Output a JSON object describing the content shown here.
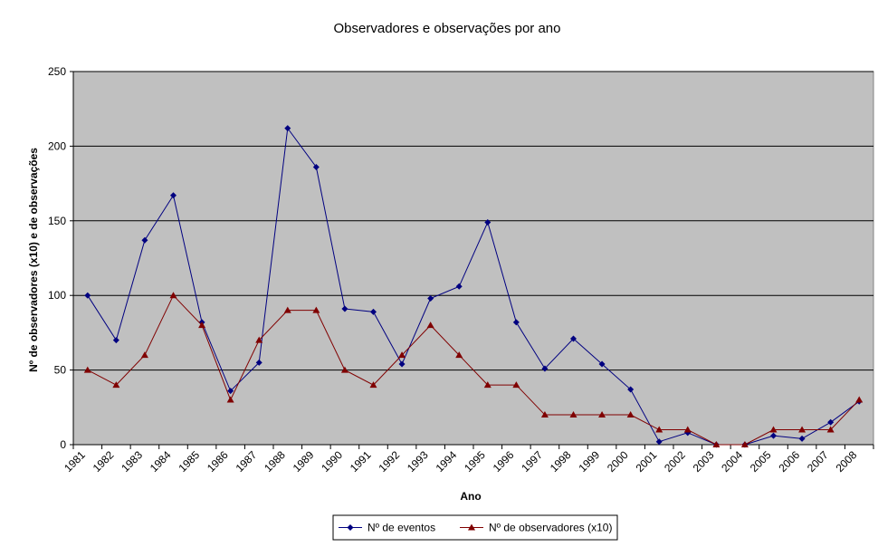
{
  "chart_data": {
    "type": "line",
    "title": "Observadores e observações por ano",
    "xlabel": "Ano",
    "ylabel": "Nº de observadores (x10) e de observações",
    "ylim": [
      0,
      250
    ],
    "yticks": [
      "0",
      "50",
      "100",
      "150",
      "200",
      "250"
    ],
    "grid": "horizontal",
    "legend_position": "bottom",
    "categories": [
      "1981",
      "1982",
      "1983",
      "1984",
      "1985",
      "1986",
      "1987",
      "1988",
      "1989",
      "1990",
      "1991",
      "1992",
      "1993",
      "1994",
      "1995",
      "1996",
      "1997",
      "1998",
      "1999",
      "2000",
      "2001",
      "2002",
      "2003",
      "2004",
      "2005",
      "2006",
      "2007",
      "2008"
    ],
    "series": [
      {
        "name": "Nº de eventos",
        "color": "#000080",
        "marker": "diamond",
        "values": [
          100,
          70,
          137,
          167,
          82,
          36,
          55,
          212,
          186,
          91,
          89,
          54,
          98,
          106,
          149,
          82,
          51,
          71,
          54,
          37,
          2,
          8,
          0,
          0,
          6,
          4,
          15,
          29
        ]
      },
      {
        "name": "Nº de observadores (x10)",
        "color": "#800000",
        "marker": "triangle",
        "values": [
          50,
          40,
          60,
          100,
          80,
          30,
          70,
          90,
          90,
          50,
          40,
          60,
          80,
          60,
          40,
          40,
          20,
          20,
          20,
          20,
          10,
          10,
          0,
          0,
          10,
          10,
          10,
          30
        ]
      }
    ],
    "colors": {
      "plot_background": "#c0c0c0",
      "gridline": "#000000"
    }
  }
}
